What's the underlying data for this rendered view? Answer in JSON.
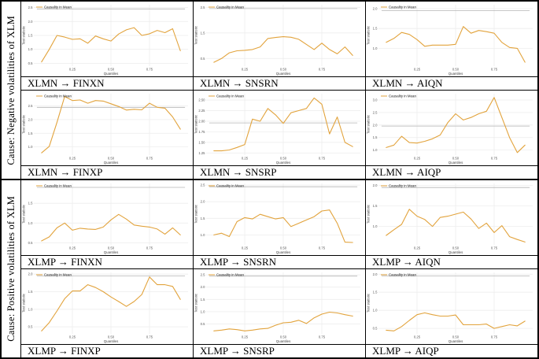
{
  "sections": [
    {
      "label": "Cause: Negative volatilities of XLM"
    },
    {
      "label": "Cause: Positive volatilities of XLM"
    }
  ],
  "chart_common": {
    "legend": "Causality in Mean",
    "xlabel": "Quantiles",
    "ylabel": "Test statistic",
    "x_tick_labels": [
      "0.25",
      "0.50",
      "0.75"
    ],
    "x_ticks": [
      0.25,
      0.5,
      0.75
    ],
    "line_color": "#E2A33C",
    "critical_line_color": "#B4B4B4",
    "grid_color": "#EDEDED",
    "x": [
      0.05,
      0.1,
      0.15,
      0.2,
      0.25,
      0.3,
      0.35,
      0.4,
      0.45,
      0.5,
      0.55,
      0.6,
      0.65,
      0.7,
      0.75,
      0.8,
      0.85,
      0.9,
      0.95
    ]
  },
  "chart_data": [
    {
      "type": "line",
      "caption": "XLMN → FINXN",
      "section": 0,
      "ylim": [
        0.4,
        2.6
      ],
      "y_ticks": [
        "0.5",
        "1.0",
        "1.5",
        "2.0",
        "2.5"
      ],
      "critical_value": 2.45,
      "values": [
        0.55,
        1.0,
        1.5,
        1.44,
        1.36,
        1.38,
        1.22,
        1.48,
        1.38,
        1.3,
        1.55,
        1.7,
        1.78,
        1.5,
        1.56,
        1.68,
        1.6,
        1.74,
        0.95
      ]
    },
    {
      "type": "line",
      "caption": "XLMN → SNSRN",
      "section": 0,
      "ylim": [
        0.2,
        2.6
      ],
      "y_ticks": [
        "0.5",
        "1.5",
        "2.5"
      ],
      "critical_value": 2.45,
      "values": [
        0.35,
        0.5,
        0.72,
        0.8,
        0.82,
        0.85,
        0.95,
        1.28,
        1.32,
        1.35,
        1.33,
        1.25,
        1.05,
        0.85,
        1.1,
        0.85,
        0.68,
        0.95,
        0.62
      ]
    },
    {
      "type": "line",
      "caption": "XLMN → AIQN",
      "section": 0,
      "ylim": [
        0.55,
        2.1
      ],
      "y_ticks": [
        "1.0",
        "1.5",
        "2.0"
      ],
      "critical_value": 1.95,
      "values": [
        1.15,
        1.25,
        1.4,
        1.35,
        1.22,
        1.05,
        1.08,
        1.08,
        1.08,
        1.1,
        1.55,
        1.38,
        1.45,
        1.42,
        1.38,
        1.15,
        1.02,
        1.0,
        0.65
      ]
    },
    {
      "type": "line",
      "caption": "XLMN → FINXP",
      "section": 0,
      "ylim": [
        0.7,
        2.95
      ],
      "y_ticks": [
        "1.0",
        "1.5",
        "2.0",
        "2.5"
      ],
      "critical_value": 2.45,
      "values": [
        0.78,
        1.02,
        1.9,
        2.85,
        2.7,
        2.72,
        2.6,
        2.7,
        2.68,
        2.58,
        2.48,
        2.35,
        2.38,
        2.36,
        2.6,
        2.45,
        2.42,
        2.1,
        1.65
      ]
    },
    {
      "type": "line",
      "caption": "XLMN → SNSRP",
      "section": 0,
      "ylim": [
        1.2,
        2.65
      ],
      "y_ticks": [
        "1.25",
        "1.50",
        "1.75",
        "2.00",
        "2.25",
        "2.50"
      ],
      "critical_value": 1.96,
      "values": [
        1.3,
        1.3,
        1.32,
        1.38,
        1.45,
        2.05,
        2.0,
        2.3,
        2.15,
        1.95,
        2.2,
        2.25,
        2.3,
        2.55,
        2.4,
        1.7,
        2.1,
        1.5,
        1.4
      ]
    },
    {
      "type": "line",
      "caption": "XLMN → AIQP",
      "section": 0,
      "ylim": [
        0.8,
        3.25
      ],
      "y_ticks": [
        "1.0",
        "1.5",
        "2.0",
        "2.5",
        "3.0"
      ],
      "critical_value": 1.96,
      "values": [
        1.1,
        1.2,
        1.55,
        1.3,
        1.28,
        1.35,
        1.45,
        1.6,
        2.1,
        2.45,
        2.2,
        2.3,
        2.45,
        2.55,
        3.1,
        2.3,
        1.5,
        0.9,
        1.2
      ]
    },
    {
      "type": "line",
      "caption": "XLMP → FINXN",
      "section": 1,
      "ylim": [
        0.45,
        2.0
      ],
      "y_ticks": [
        "0.5",
        "1.0",
        "1.5"
      ],
      "critical_value": 1.9,
      "values": [
        0.55,
        0.65,
        0.88,
        1.0,
        0.82,
        0.87,
        0.85,
        0.84,
        0.9,
        1.08,
        1.22,
        1.1,
        0.95,
        0.92,
        0.9,
        0.85,
        0.72,
        0.88,
        0.7
      ]
    },
    {
      "type": "line",
      "caption": "XLMP → SNSRN",
      "section": 1,
      "ylim": [
        0.7,
        2.55
      ],
      "y_ticks": [
        "1.0",
        "1.5",
        "2.0",
        "2.5"
      ],
      "critical_value": 2.45,
      "values": [
        1.0,
        1.05,
        0.95,
        1.4,
        1.52,
        1.48,
        1.62,
        1.55,
        1.48,
        1.52,
        1.25,
        1.35,
        1.45,
        1.55,
        1.72,
        1.75,
        1.35,
        0.78,
        0.77
      ]
    },
    {
      "type": "line",
      "caption": "XLMP → AIQN",
      "section": 1,
      "ylim": [
        0.55,
        2.05
      ],
      "y_ticks": [
        "1.0",
        "1.5",
        "2.0"
      ],
      "critical_value": 1.95,
      "values": [
        0.78,
        0.92,
        1.05,
        1.42,
        1.25,
        1.17,
        1.0,
        1.22,
        1.25,
        1.3,
        1.35,
        1.18,
        0.95,
        1.08,
        0.85,
        1.02,
        0.75,
        0.68,
        0.62
      ]
    },
    {
      "type": "line",
      "caption": "XLMP → FINXP",
      "section": 1,
      "ylim": [
        0.3,
        2.05
      ],
      "y_ticks": [
        "0.5",
        "1.0",
        "1.5",
        "2.0"
      ],
      "critical_value": 1.95,
      "values": [
        0.38,
        0.62,
        0.95,
        1.3,
        1.52,
        1.52,
        1.7,
        1.62,
        1.5,
        1.35,
        1.22,
        1.08,
        1.22,
        1.42,
        1.92,
        1.7,
        1.7,
        1.65,
        1.28
      ]
    },
    {
      "type": "line",
      "caption": "XLMP → SNSRP",
      "section": 1,
      "ylim": [
        0.1,
        2.6
      ],
      "y_ticks": [
        "0.5",
        "1.0",
        "1.5",
        "2.0",
        "2.5"
      ],
      "critical_value": 2.45,
      "values": [
        0.22,
        0.25,
        0.3,
        0.27,
        0.22,
        0.25,
        0.3,
        0.32,
        0.45,
        0.55,
        0.57,
        0.65,
        0.52,
        0.75,
        0.9,
        0.98,
        0.95,
        0.88,
        0.82
      ]
    },
    {
      "type": "line",
      "caption": "XLMP → AIQP",
      "section": 1,
      "ylim": [
        0.35,
        2.05
      ],
      "y_ticks": [
        "0.5",
        "1.0",
        "1.5",
        "2.0"
      ],
      "critical_value": 1.95,
      "values": [
        0.45,
        0.43,
        0.55,
        0.72,
        0.88,
        0.93,
        0.88,
        0.84,
        0.84,
        0.87,
        0.6,
        0.6,
        0.6,
        0.62,
        0.5,
        0.55,
        0.6,
        0.57,
        0.7
      ]
    }
  ]
}
